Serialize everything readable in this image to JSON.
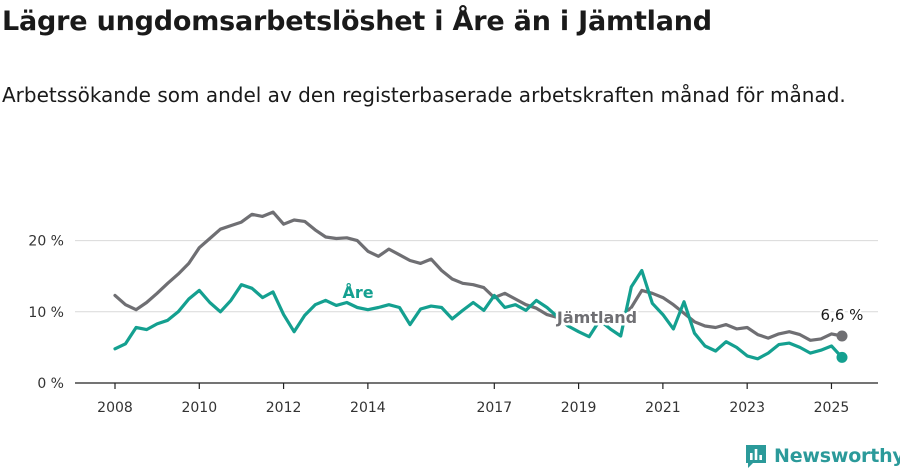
{
  "title": "Lägre ungdomsarbetslöshet i Åre än i Jämtland",
  "subtitle": "Arbetssökande som andel av den registerbaserade arbetskraften månad för månad.",
  "brand": "Newsworthy",
  "colors": {
    "are": "#14a090",
    "jamtland": "#6f6f73",
    "grid": "#d9d9d9",
    "text": "#1a1a1a",
    "brand": "#2b9a9a"
  },
  "chart_data": {
    "type": "line",
    "title": "Lägre ungdomsarbetslöshet i Åre än i Jämtland",
    "xlabel": "",
    "ylabel": "",
    "x_ticks": [
      "2008",
      "2010",
      "2012",
      "2014",
      "2017",
      "2019",
      "2021",
      "2023",
      "2025"
    ],
    "y_ticks": [
      "0 %",
      "10 %",
      "20 %"
    ],
    "ylim": [
      0,
      25
    ],
    "grid": true,
    "series": [
      {
        "name": "Jämtland",
        "end_label": "6,6 %",
        "points": [
          [
            "2008-01",
            12.3
          ],
          [
            "2008-04",
            11.0
          ],
          [
            "2008-07",
            10.3
          ],
          [
            "2008-10",
            11.3
          ],
          [
            "2009-01",
            12.6
          ],
          [
            "2009-04",
            14.0
          ],
          [
            "2009-07",
            15.3
          ],
          [
            "2009-10",
            16.8
          ],
          [
            "2010-01",
            19.0
          ],
          [
            "2010-04",
            20.3
          ],
          [
            "2010-07",
            21.6
          ],
          [
            "2010-10",
            22.1
          ],
          [
            "2011-01",
            22.6
          ],
          [
            "2011-04",
            23.7
          ],
          [
            "2011-07",
            23.4
          ],
          [
            "2011-10",
            24.0
          ],
          [
            "2012-01",
            22.3
          ],
          [
            "2012-04",
            22.9
          ],
          [
            "2012-07",
            22.7
          ],
          [
            "2012-10",
            21.5
          ],
          [
            "2013-01",
            20.5
          ],
          [
            "2013-04",
            20.3
          ],
          [
            "2013-07",
            20.4
          ],
          [
            "2013-10",
            20.0
          ],
          [
            "2014-01",
            18.5
          ],
          [
            "2014-04",
            17.8
          ],
          [
            "2014-07",
            18.8
          ],
          [
            "2014-10",
            18.0
          ],
          [
            "2015-01",
            17.2
          ],
          [
            "2015-04",
            16.8
          ],
          [
            "2015-07",
            17.4
          ],
          [
            "2015-10",
            15.8
          ],
          [
            "2016-01",
            14.6
          ],
          [
            "2016-04",
            14.0
          ],
          [
            "2016-07",
            13.8
          ],
          [
            "2016-10",
            13.4
          ],
          [
            "2017-01",
            12.0
          ],
          [
            "2017-04",
            12.6
          ],
          [
            "2017-07",
            11.8
          ],
          [
            "2017-10",
            11.0
          ],
          [
            "2018-01",
            10.5
          ],
          [
            "2018-04",
            9.6
          ],
          [
            "2018-07",
            9.2
          ],
          [
            "2018-10",
            8.8
          ],
          [
            "2019-01",
            8.6
          ],
          [
            "2019-04",
            8.8
          ],
          [
            "2019-07",
            9.3
          ],
          [
            "2019-10",
            9.0
          ],
          [
            "2020-01",
            9.3
          ],
          [
            "2020-04",
            10.6
          ],
          [
            "2020-07",
            13.0
          ],
          [
            "2020-10",
            12.6
          ],
          [
            "2021-01",
            12.0
          ],
          [
            "2021-04",
            11.0
          ],
          [
            "2021-07",
            9.8
          ],
          [
            "2021-10",
            8.6
          ],
          [
            "2022-01",
            8.0
          ],
          [
            "2022-04",
            7.8
          ],
          [
            "2022-07",
            8.2
          ],
          [
            "2022-10",
            7.6
          ],
          [
            "2023-01",
            7.8
          ],
          [
            "2023-04",
            6.8
          ],
          [
            "2023-07",
            6.3
          ],
          [
            "2023-10",
            6.9
          ],
          [
            "2024-01",
            7.2
          ],
          [
            "2024-04",
            6.8
          ],
          [
            "2024-07",
            6.0
          ],
          [
            "2024-10",
            6.2
          ],
          [
            "2025-01",
            6.9
          ],
          [
            "2025-04",
            6.6
          ]
        ]
      },
      {
        "name": "Åre",
        "end_label": "3,6 %",
        "points": [
          [
            "2008-01",
            4.8
          ],
          [
            "2008-04",
            5.5
          ],
          [
            "2008-07",
            7.8
          ],
          [
            "2008-10",
            7.5
          ],
          [
            "2009-01",
            8.3
          ],
          [
            "2009-04",
            8.8
          ],
          [
            "2009-07",
            10.0
          ],
          [
            "2009-10",
            11.8
          ],
          [
            "2010-01",
            13.0
          ],
          [
            "2010-04",
            11.3
          ],
          [
            "2010-07",
            10.0
          ],
          [
            "2010-10",
            11.6
          ],
          [
            "2011-01",
            13.8
          ],
          [
            "2011-04",
            13.3
          ],
          [
            "2011-07",
            12.0
          ],
          [
            "2011-10",
            12.8
          ],
          [
            "2012-01",
            9.6
          ],
          [
            "2012-04",
            7.2
          ],
          [
            "2012-07",
            9.5
          ],
          [
            "2012-10",
            11.0
          ],
          [
            "2013-01",
            11.6
          ],
          [
            "2013-04",
            10.9
          ],
          [
            "2013-07",
            11.3
          ],
          [
            "2013-10",
            10.6
          ],
          [
            "2014-01",
            10.3
          ],
          [
            "2014-04",
            10.6
          ],
          [
            "2014-07",
            11.0
          ],
          [
            "2014-10",
            10.6
          ],
          [
            "2015-01",
            8.2
          ],
          [
            "2015-04",
            10.4
          ],
          [
            "2015-07",
            10.8
          ],
          [
            "2015-10",
            10.6
          ],
          [
            "2016-01",
            9.0
          ],
          [
            "2016-04",
            10.2
          ],
          [
            "2016-07",
            11.3
          ],
          [
            "2016-10",
            10.2
          ],
          [
            "2017-01",
            12.3
          ],
          [
            "2017-04",
            10.6
          ],
          [
            "2017-07",
            11.0
          ],
          [
            "2017-10",
            10.2
          ],
          [
            "2018-01",
            11.6
          ],
          [
            "2018-04",
            10.6
          ],
          [
            "2018-07",
            9.3
          ],
          [
            "2018-10",
            8.0
          ],
          [
            "2019-01",
            7.2
          ],
          [
            "2019-04",
            6.5
          ],
          [
            "2019-07",
            8.8
          ],
          [
            "2019-10",
            7.6
          ],
          [
            "2020-01",
            6.6
          ],
          [
            "2020-04",
            13.5
          ],
          [
            "2020-07",
            15.8
          ],
          [
            "2020-10",
            11.2
          ],
          [
            "2021-01",
            9.6
          ],
          [
            "2021-04",
            7.6
          ],
          [
            "2021-07",
            11.4
          ],
          [
            "2021-10",
            7.0
          ],
          [
            "2022-01",
            5.2
          ],
          [
            "2022-04",
            4.5
          ],
          [
            "2022-07",
            5.8
          ],
          [
            "2022-10",
            5.0
          ],
          [
            "2023-01",
            3.8
          ],
          [
            "2023-04",
            3.4
          ],
          [
            "2023-07",
            4.2
          ],
          [
            "2023-10",
            5.4
          ],
          [
            "2024-01",
            5.6
          ],
          [
            "2024-04",
            5.0
          ],
          [
            "2024-07",
            4.2
          ],
          [
            "2024-10",
            4.6
          ],
          [
            "2025-01",
            5.2
          ],
          [
            "2025-04",
            3.6
          ]
        ]
      }
    ],
    "annotations": [
      "Åre",
      "Jämtland"
    ]
  }
}
